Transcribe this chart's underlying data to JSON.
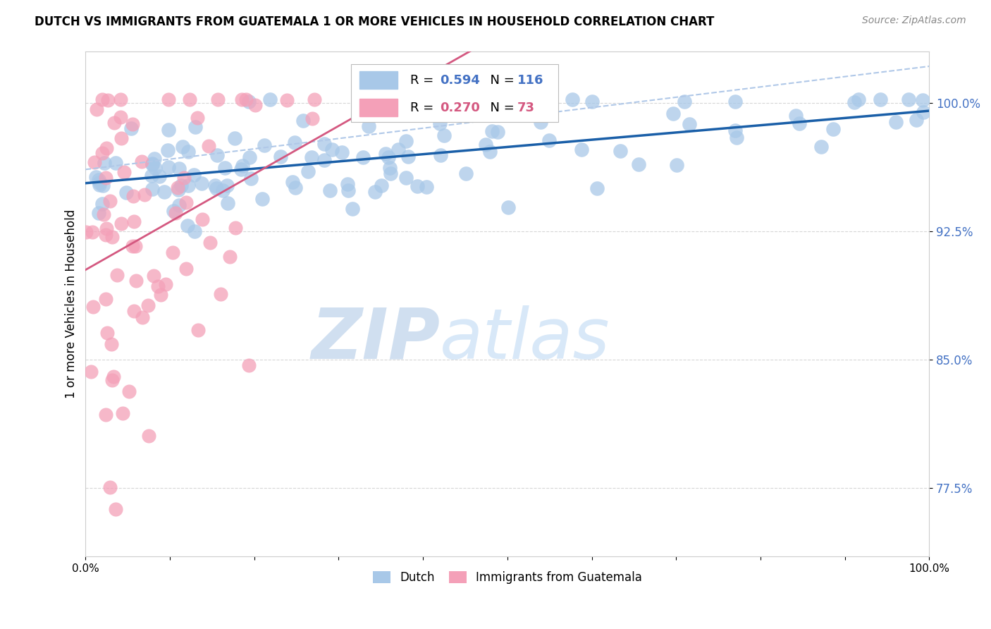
{
  "title": "DUTCH VS IMMIGRANTS FROM GUATEMALA 1 OR MORE VEHICLES IN HOUSEHOLD CORRELATION CHART",
  "source": "Source: ZipAtlas.com",
  "ylabel": "1 or more Vehicles in Household",
  "xlim": [
    0.0,
    1.0
  ],
  "ylim": [
    0.735,
    1.03
  ],
  "yticks": [
    0.775,
    0.85,
    0.925,
    1.0
  ],
  "ytick_labels": [
    "77.5%",
    "85.0%",
    "92.5%",
    "100.0%"
  ],
  "xticks": [
    0.0,
    0.1,
    0.2,
    0.3,
    0.4,
    0.5,
    0.6,
    0.7,
    0.8,
    0.9,
    1.0
  ],
  "xtick_labels": [
    "0.0%",
    "",
    "",
    "",
    "",
    "",
    "",
    "",
    "",
    "",
    "100.0%"
  ],
  "dutch_R": 0.594,
  "dutch_N": 116,
  "guatemala_R": 0.27,
  "guatemala_N": 73,
  "dutch_color": "#a8c8e8",
  "guatemala_color": "#f4a0b8",
  "dutch_line_color": "#1a5fa8",
  "guatemala_line_color": "#d45880",
  "dashed_line_color": "#b0c8e8",
  "legend_dutch": "Dutch",
  "legend_guatemala": "Immigrants from Guatemala",
  "watermark_zip": "ZIP",
  "watermark_atlas": "atlas",
  "watermark_color": "#d0dff0",
  "title_fontsize": 12,
  "axis_color": "#4472c4",
  "background_color": "#ffffff"
}
